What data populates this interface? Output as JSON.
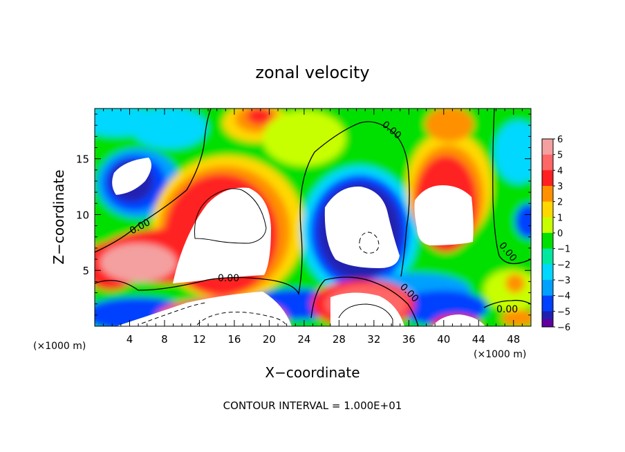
{
  "chart_data": {
    "type": "heatmap",
    "title": "zonal velocity",
    "xlabel": "X−coordinate",
    "ylabel": "Z−coordinate",
    "x_unit_left": "(×1000 m)",
    "x_unit_right": "(×1000 m)",
    "xlim": [
      0,
      50
    ],
    "ylim": [
      0,
      19.5
    ],
    "x_ticks": [
      4,
      8,
      12,
      16,
      20,
      24,
      28,
      32,
      36,
      40,
      44,
      48
    ],
    "x_minor_ticks": [
      1,
      2,
      3,
      5,
      6,
      7,
      9,
      10,
      11,
      13,
      14,
      15,
      17,
      18,
      19,
      21,
      22,
      23,
      25,
      26,
      27,
      29,
      30,
      31,
      33,
      34,
      35,
      37,
      38,
      39,
      41,
      42,
      43,
      45,
      46,
      47,
      49
    ],
    "y_ticks": [
      5,
      10,
      15
    ],
    "y_minor_ticks": [
      1,
      2,
      3,
      4,
      6,
      7,
      8,
      9,
      11,
      12,
      13,
      14,
      16,
      17,
      18,
      19
    ],
    "colorbar": {
      "levels": [
        6,
        5,
        4,
        3,
        2,
        1,
        0,
        -1,
        -2,
        -3,
        -4,
        -5,
        -6
      ],
      "colors": [
        "#f4a0a0",
        "#ff6666",
        "#ff2020",
        "#ff9000",
        "#ffd800",
        "#c8ff00",
        "#00e000",
        "#00e8a0",
        "#00d8ff",
        "#00a0ff",
        "#0040ff",
        "#2020b0",
        "#6000a0"
      ]
    },
    "contour_labels": [
      "0.00",
      "0.00",
      "0.00",
      "0.00",
      "0.00",
      "0.00"
    ],
    "footer": "CONTOUR INTERVAL = 1.000E+01"
  }
}
